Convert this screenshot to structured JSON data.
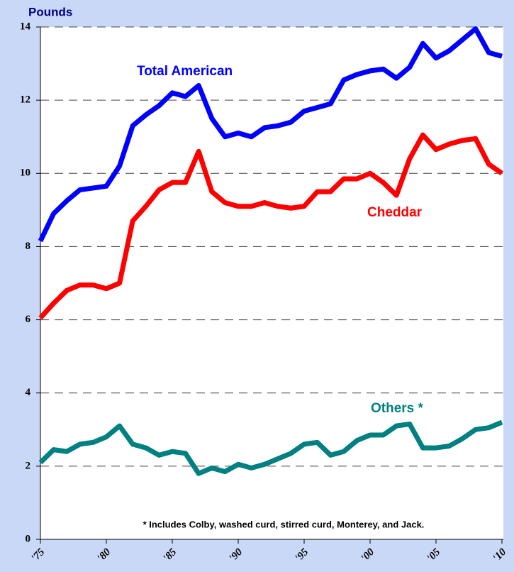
{
  "chart_data": {
    "type": "line",
    "y_label": "Pounds",
    "x": [
      1975,
      1976,
      1977,
      1978,
      1979,
      1980,
      1981,
      1982,
      1983,
      1984,
      1985,
      1986,
      1987,
      1988,
      1989,
      1990,
      1991,
      1992,
      1993,
      1994,
      1995,
      1996,
      1997,
      1998,
      1999,
      2000,
      2001,
      2002,
      2003,
      2004,
      2005,
      2006,
      2007,
      2008,
      2009,
      2010
    ],
    "series": [
      {
        "name": "Total American",
        "color": "#0000ff",
        "values": [
          8.15,
          8.9,
          9.25,
          9.55,
          9.6,
          9.65,
          10.2,
          11.3,
          11.6,
          11.85,
          12.2,
          12.1,
          12.4,
          11.5,
          11.0,
          11.1,
          11.0,
          11.25,
          11.3,
          11.4,
          11.7,
          11.8,
          11.9,
          12.55,
          12.7,
          12.8,
          12.85,
          12.6,
          12.9,
          13.55,
          13.15,
          13.35,
          13.65,
          13.95,
          13.3,
          13.2
        ]
      },
      {
        "name": "Cheddar",
        "color": "#ff0000",
        "values": [
          6.05,
          6.45,
          6.8,
          6.95,
          6.95,
          6.85,
          7.0,
          8.7,
          9.1,
          9.55,
          9.75,
          9.75,
          10.6,
          9.5,
          9.2,
          9.1,
          9.1,
          9.2,
          9.1,
          9.05,
          9.1,
          9.5,
          9.5,
          9.85,
          9.85,
          10.0,
          9.75,
          9.4,
          10.4,
          11.05,
          10.65,
          10.8,
          10.9,
          10.95,
          10.25,
          10.0
        ]
      },
      {
        "name": "Others *",
        "color": "#008080",
        "values": [
          2.1,
          2.45,
          2.4,
          2.6,
          2.65,
          2.8,
          3.1,
          2.6,
          2.5,
          2.3,
          2.4,
          2.35,
          1.8,
          1.95,
          1.85,
          2.05,
          1.95,
          2.05,
          2.2,
          2.35,
          2.6,
          2.65,
          2.3,
          2.4,
          2.7,
          2.85,
          2.85,
          3.1,
          3.15,
          2.5,
          2.5,
          2.55,
          2.75,
          3.0,
          3.05,
          3.2
        ]
      }
    ],
    "xlim": [
      1975,
      2010
    ],
    "xticks": [
      {
        "value": 1975,
        "label": "'75"
      },
      {
        "value": 1980,
        "label": "'80"
      },
      {
        "value": 1985,
        "label": "'85"
      },
      {
        "value": 1990,
        "label": "'90"
      },
      {
        "value": 1995,
        "label": "'95"
      },
      {
        "value": 2000,
        "label": "'00"
      },
      {
        "value": 2005,
        "label": "'05"
      },
      {
        "value": 2010,
        "label": "'10"
      }
    ],
    "ylim": [
      0,
      14
    ],
    "yticks": [
      0,
      2,
      4,
      6,
      8,
      10,
      12,
      14
    ],
    "grid": true,
    "footnote": "* Includes Colby, washed curd, stirred curd, Monterey, and Jack."
  }
}
